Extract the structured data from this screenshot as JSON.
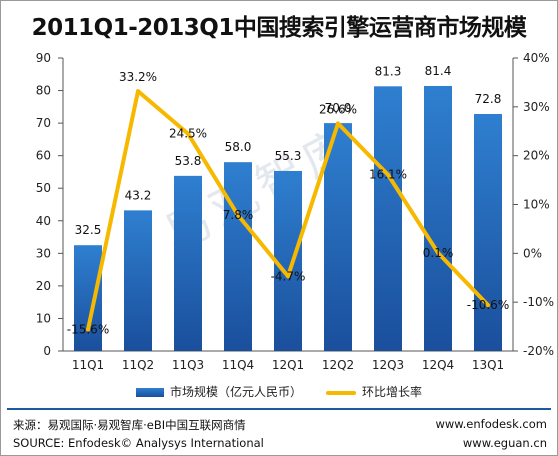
{
  "chart_data": {
    "type": "bar",
    "title": "2011Q1-2013Q1中国搜索引擎运营商市场规模",
    "categories": [
      "11Q1",
      "11Q2",
      "11Q3",
      "11Q4",
      "12Q1",
      "12Q2",
      "12Q3",
      "12Q4",
      "13Q1"
    ],
    "series": [
      {
        "name": "市场规模（亿元人民币）",
        "type": "bar",
        "axis": "left",
        "values": [
          32.5,
          43.2,
          53.8,
          58.0,
          55.3,
          70.0,
          81.3,
          81.4,
          72.8
        ],
        "labels": [
          "32.5",
          "43.2",
          "53.8",
          "58.0",
          "55.3",
          "70.0",
          "81.3",
          "81.4",
          "72.8"
        ]
      },
      {
        "name": "环比增长率",
        "type": "line",
        "axis": "right",
        "values": [
          -15.6,
          33.2,
          24.5,
          7.8,
          -4.7,
          26.6,
          16.1,
          0.1,
          -10.6
        ],
        "labels": [
          "-15.6%",
          "33.2%",
          "24.5%",
          "7.8%",
          "-4.7%",
          "26.6%",
          "16.1%",
          "0.1%",
          "-10.6%"
        ]
      }
    ],
    "y_left": {
      "range": [
        0,
        90
      ],
      "ticks": [
        "0",
        "10",
        "20",
        "30",
        "40",
        "50",
        "60",
        "70",
        "80",
        "90"
      ]
    },
    "y_right": {
      "range": [
        -20,
        40
      ],
      "ticks": [
        "-20%",
        "-10%",
        "0%",
        "10%",
        "20%",
        "30%",
        "40%"
      ]
    },
    "legend_position": "bottom",
    "grid": false,
    "colors": {
      "bar_top": "#2f7fd0",
      "bar_bottom": "#1a4f9c",
      "line": "#f7b800"
    }
  },
  "watermark": "易观智库",
  "footer": {
    "source_cn": "来源：易观国际·易观智库·eBI中国互联网商情",
    "source_en": "SOURCE: Enfodesk© Analysys International",
    "site1": "www.enfodesk.com",
    "site2": "www.eguan.cn"
  }
}
